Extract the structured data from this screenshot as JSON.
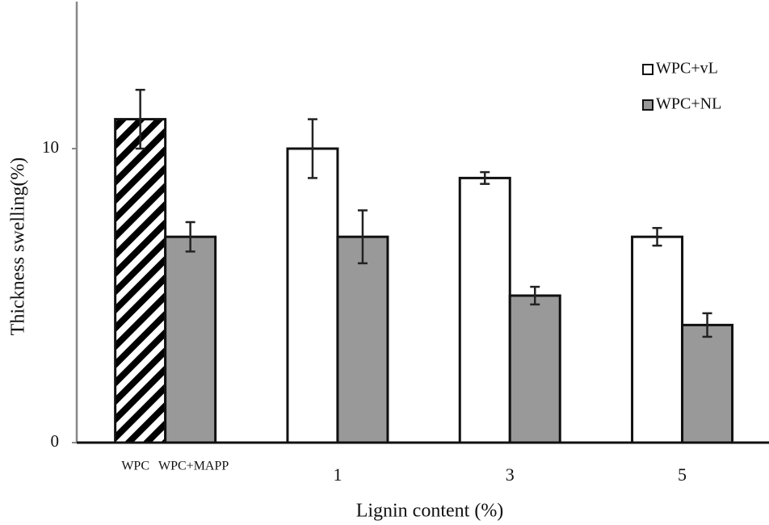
{
  "chart_data": {
    "type": "bar",
    "y_label": "Thickness swelling(%)",
    "x_label": "Lignin content (%)",
    "ylim": [
      0,
      15
    ],
    "yticks": [
      0,
      10
    ],
    "controls": [
      {
        "label": "WPC",
        "value": 11,
        "error": 1,
        "pattern": "hatch",
        "color": "#ffffff"
      },
      {
        "label": "WPC+MAPP",
        "value": 7,
        "error": 0.5,
        "color": "#999999"
      }
    ],
    "categories": [
      "1",
      "3",
      "5"
    ],
    "series": [
      {
        "name": "WPC+vL",
        "color": "#ffffff",
        "values": [
          10,
          9,
          7
        ],
        "errors": [
          1,
          0.2,
          0.3
        ]
      },
      {
        "name": "WPC+NL",
        "color": "#999999",
        "values": [
          7,
          5,
          4
        ],
        "errors": [
          0.9,
          0.3,
          0.4
        ]
      }
    ],
    "legend": "upper right"
  }
}
